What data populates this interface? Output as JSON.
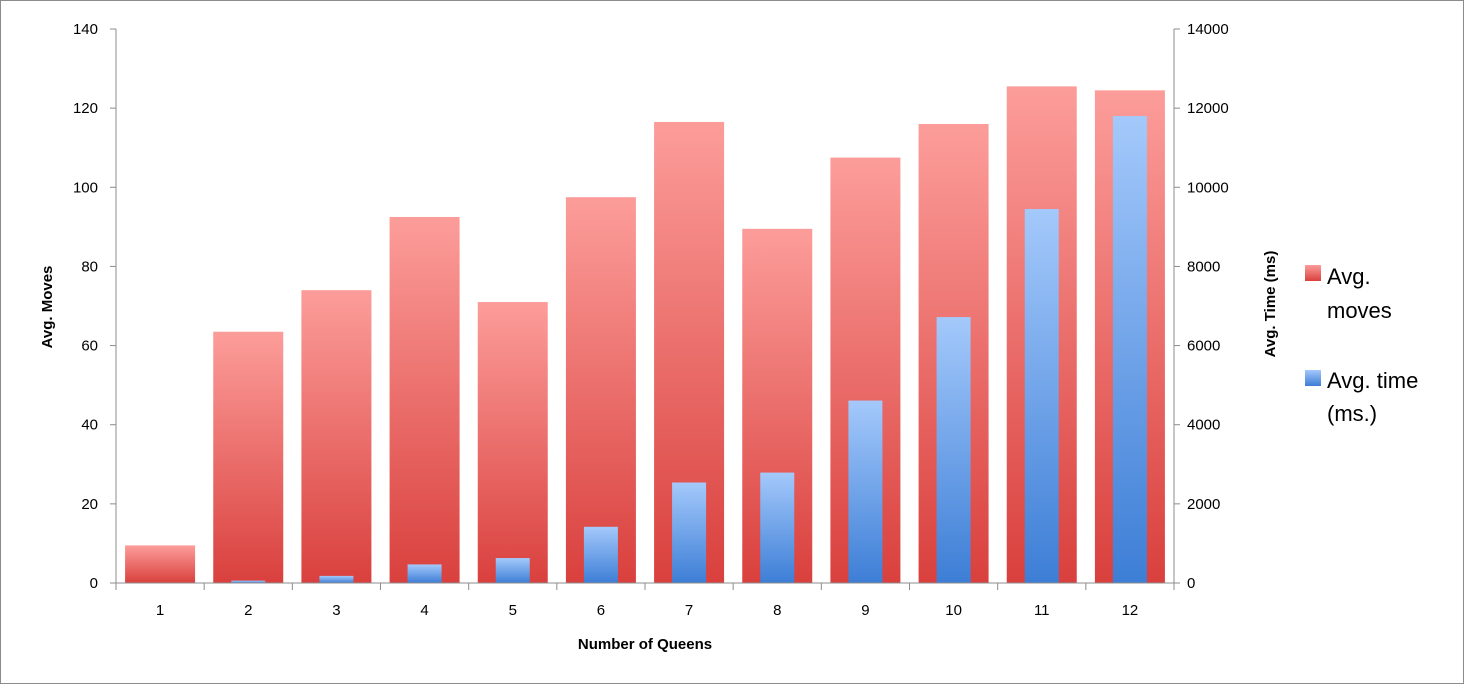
{
  "chart_data": {
    "type": "bar",
    "categories": [
      "1",
      "2",
      "3",
      "4",
      "5",
      "6",
      "7",
      "8",
      "9",
      "10",
      "11",
      "12"
    ],
    "series": [
      {
        "name": "Avg. moves",
        "axis": "left",
        "color": "#d9403d",
        "values": [
          9.5,
          63.5,
          74,
          92.5,
          71,
          97.5,
          116.5,
          89.5,
          107.5,
          116,
          125.5,
          124.5
        ]
      },
      {
        "name": "Avg. time (ms.)",
        "axis": "right",
        "color": "#4a8ad9",
        "values": [
          10,
          60,
          180,
          470,
          630,
          1420,
          2540,
          2790,
          4610,
          6720,
          9450,
          11800
        ]
      }
    ],
    "legend_lines": [
      [
        "Avg.",
        "moves"
      ],
      [
        "Avg. time",
        "(ms.)"
      ]
    ],
    "legend_position": "right",
    "xlabel": "Number of Queens",
    "ylabel": "Avg. Moves",
    "y2label": "Avg. Time (ms)",
    "ylim": [
      0,
      140
    ],
    "y2lim": [
      0,
      14000
    ],
    "yticks": [
      "0",
      "20",
      "40",
      "60",
      "80",
      "100",
      "120",
      "140"
    ],
    "y2ticks": [
      "0",
      "2000",
      "4000",
      "6000",
      "8000",
      "10000",
      "12000",
      "14000"
    ],
    "grid": false
  }
}
